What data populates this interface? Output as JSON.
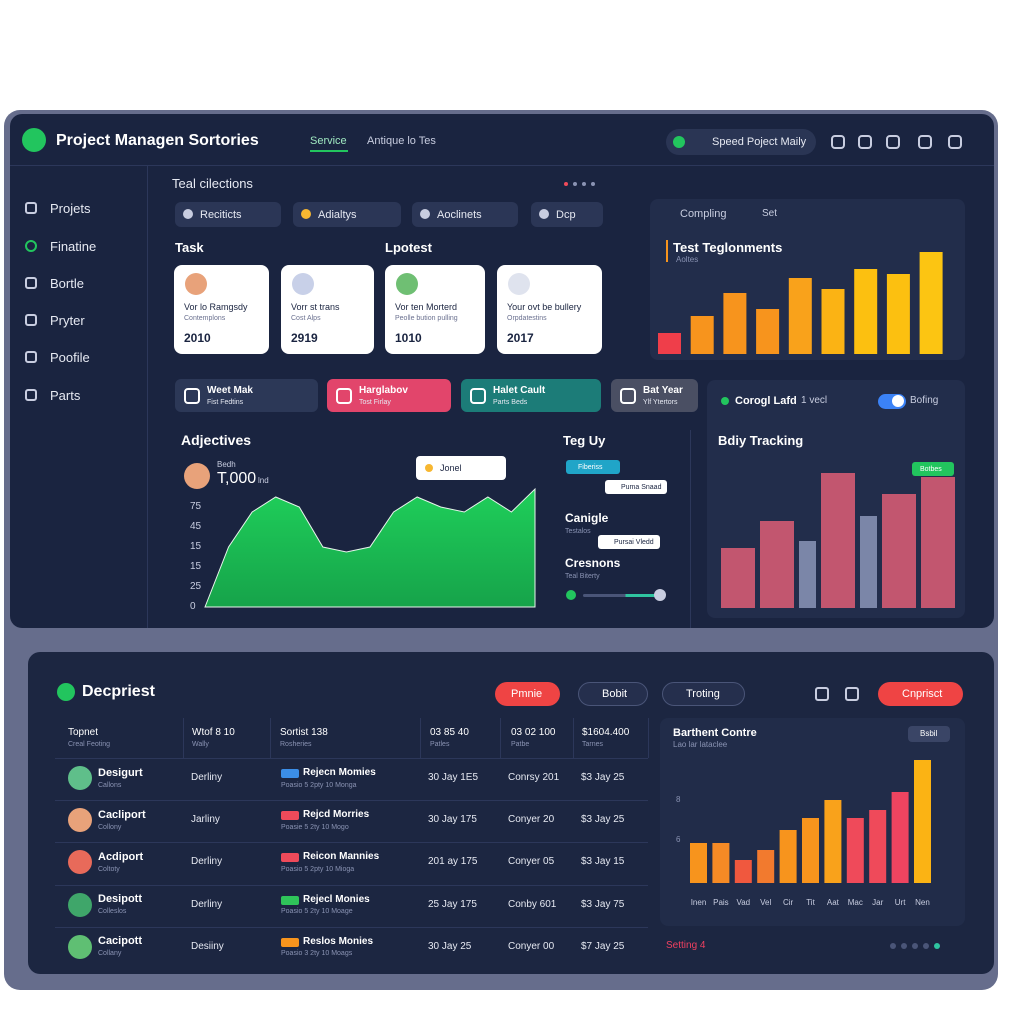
{
  "header": {
    "brand": "Project Managen Sortories",
    "tabs": [
      "Service",
      "Antique lo Tes"
    ],
    "pill": "Speed Poject Maily"
  },
  "sidebar": [
    "Projets",
    "Finatine",
    "Bortle",
    "Pryter",
    "Poofile",
    "Parts"
  ],
  "overview": {
    "title": "Teal cilections",
    "filters": [
      "Reciticts",
      "Adialtys",
      "Aoclinets",
      "Dcp"
    ],
    "task_label": "Task",
    "latest_label": "Lpotest",
    "cards": [
      {
        "title": "Vor lo Ramgsdy",
        "subtitle": "Contemplons",
        "value": "2010"
      },
      {
        "title": "Vorr st trans",
        "subtitle": "Cost Alps",
        "value": "2919"
      },
      {
        "title": "Vor ten Morterd",
        "subtitle": "Peolle bution pulling",
        "value": "1010"
      },
      {
        "title": "Your ovt be bullery",
        "subtitle": "Orpdatestins",
        "value": "2017"
      }
    ],
    "chips": [
      {
        "title": "Weet Mak",
        "subtitle": "Fist Fedtins",
        "color": "#2c3857"
      },
      {
        "title": "Harglabov",
        "subtitle": "Tost Firlay",
        "color": "#e2456b"
      },
      {
        "title": "Halet Cault",
        "subtitle": "Parts Beds",
        "color": "#1c7c78"
      },
      {
        "title": "Bat Year",
        "subtitle": "Ylf Ytertors",
        "color": "#4a4f63"
      }
    ]
  },
  "activity": {
    "title": "Teg Uy",
    "badges": [
      "Fiberiss",
      "Puma Snaad",
      "Pursai Vledd"
    ],
    "items": [
      {
        "title": "Canigle",
        "subtitle": "Testalos"
      },
      {
        "title": "Cresnons",
        "subtitle": "Teal Biterty"
      }
    ]
  },
  "chart_data": [
    {
      "type": "bar",
      "header": "Compling",
      "header_right": "Set",
      "title": "Test Teglonments",
      "subtitle": "Aoltes",
      "values": [
        21,
        38,
        61,
        45,
        76,
        65,
        85,
        80,
        102
      ],
      "colors": [
        "#ef3e4a",
        "#f7941d",
        "#f7941d",
        "#f7941d",
        "#f9a21b",
        "#fbb314",
        "#fcc010",
        "#fcc010",
        "#fcc512"
      ]
    },
    {
      "type": "area",
      "title": "Adjectives",
      "person": "Bedh",
      "total": "T,000",
      "unit": "lnd",
      "axis_labels": [
        "75",
        "45",
        "15",
        "15",
        "25",
        "0"
      ],
      "tooltip": "Jonel",
      "values": [
        0,
        60,
        95,
        110,
        100,
        60,
        55,
        60,
        95,
        110,
        100,
        95,
        110,
        95,
        118
      ],
      "color": "#1fcf5a"
    },
    {
      "type": "bar",
      "header": "Corogl Lafd",
      "header_right": "1 vecl",
      "toggle": "Bofing",
      "title": "Bdiy Tracking",
      "badge": "Botbes",
      "values": [
        60,
        87,
        67,
        135,
        92,
        114,
        131
      ],
      "colors": [
        "#c2566f",
        "#c2566f",
        "#7b86a8",
        "#c2566f",
        "#7b86a8",
        "#c2566f",
        "#c2566f"
      ]
    },
    {
      "type": "bar",
      "title": "Barthent Contre",
      "subtitle": "Lao lar lataclee",
      "badge": "Bsbil",
      "axis_labels": [
        "8",
        "6"
      ],
      "footer": "Setting 4",
      "categories": [
        "Inen",
        "Pais",
        "Vad",
        "Vel",
        "Cir",
        "Tit",
        "Aat",
        "Mac",
        "Jar",
        "Urt",
        "Nen"
      ],
      "values": [
        40,
        40,
        23,
        33,
        53,
        65,
        83,
        65,
        73,
        91,
        123
      ],
      "colors": [
        "#f7941d",
        "#f58a25",
        "#f0583e",
        "#f27a2e",
        "#f7941d",
        "#f7941d",
        "#f9a21b",
        "#ef4a5a",
        "#ef4a5a",
        "#ee4460",
        "#fbb314"
      ]
    }
  ],
  "table": {
    "title": "Decpriest",
    "buttons": [
      "Pmnie",
      "Bobit",
      "Troting",
      "Cnprisct"
    ],
    "columns": [
      {
        "title": "Topnet",
        "subtitle": "Creal Feoting"
      },
      {
        "title": "Wtof 8 10",
        "subtitle": "Wally"
      },
      {
        "title": "Sortist 138",
        "subtitle": "Rosheries"
      },
      {
        "title": "03 85 40",
        "subtitle": "Patles"
      },
      {
        "title": "03 02 100",
        "subtitle": "Patbe"
      },
      {
        "title": "$1604.400",
        "subtitle": "Tarnes"
      }
    ],
    "rows": [
      {
        "name": "Desigurt",
        "sub": "Callons",
        "role": "Derliny",
        "project": "Rejecn Momies",
        "note": "Poasio 5 2pty 10 Monga",
        "color": "#3b8ee8",
        "date": "30 Jay 1E5",
        "code": "Conrsy 201",
        "amount": "$3 Jay 25"
      },
      {
        "name": "Cacliport",
        "sub": "Collony",
        "role": "Jarliny",
        "project": "Rejcd Morries",
        "note": "Poasie 5 2ty 10 Mogo",
        "color": "#ef4a5a",
        "date": "30 Jay 175",
        "code": "Conyer 20",
        "amount": "$3 Jay 25"
      },
      {
        "name": "Acdiport",
        "sub": "Coltoty",
        "role": "Derliny",
        "project": "Reicon Mannies",
        "note": "Poasio 5 2pty 10 Mioga",
        "color": "#ef4a5a",
        "date": "201 ay 175",
        "code": "Conyer 05",
        "amount": "$3 Jay 15"
      },
      {
        "name": "Desipott",
        "sub": "Colleslos",
        "role": "Derliny",
        "project": "Rejecl Monies",
        "note": "Poasio 5 2ty 10 Moage",
        "color": "#2fc45a",
        "date": "25 Jay 175",
        "code": "Conby 601",
        "amount": "$3 Jay 75"
      },
      {
        "name": "Cacipott",
        "sub": "Collany",
        "role": "Desiiny",
        "project": "Reslos Monies",
        "note": "Poasio 3 2ty 10 Moags",
        "color": "#f7941d",
        "date": "30 Jay 25",
        "code": "Conyer 00",
        "amount": "$7 Jay 25"
      }
    ]
  }
}
